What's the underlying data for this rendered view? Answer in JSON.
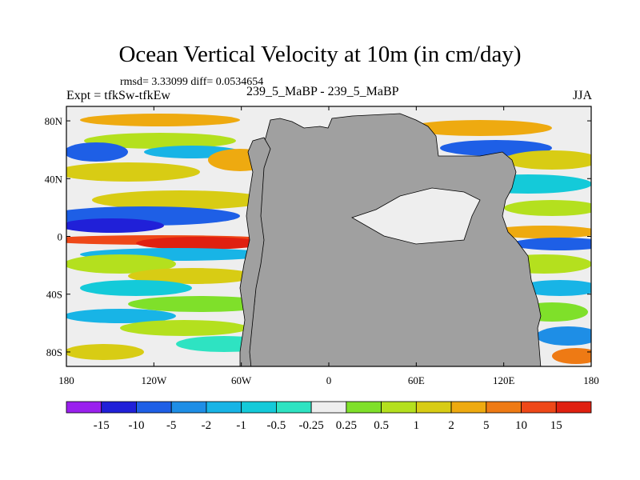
{
  "chart_data": {
    "type": "heatmap",
    "title": "Ocean Vertical Velocity at 10m (in cm/day)",
    "subtitle": "rmsd= 3.33099 diff= 0.0534654",
    "left_label": "Expt = tfkSw-tfkEw",
    "center_label": "239_5_MaBP - 239_5_MaBP",
    "right_label": "JJA",
    "x_ticks": [
      "180",
      "120W",
      "60W",
      "0",
      "60E",
      "120E",
      "180"
    ],
    "x_tick_values": [
      -180,
      -120,
      -60,
      0,
      60,
      120,
      180
    ],
    "y_ticks": [
      "80N",
      "40N",
      "0",
      "40S",
      "80S"
    ],
    "y_tick_values": [
      80,
      40,
      0,
      -40,
      -80
    ],
    "xlim": [
      -180,
      180
    ],
    "ylim": [
      -90,
      90
    ],
    "colorbar_labels": [
      "-15",
      "-10",
      "-5",
      "-2",
      "-1",
      "-0.5",
      "-0.25",
      "0.25",
      "0.5",
      "1",
      "2",
      "5",
      "10",
      "15"
    ],
    "colorbar_levels": [
      -15,
      -10,
      -5,
      -2,
      -1,
      -0.5,
      -0.25,
      0.25,
      0.5,
      1,
      2,
      5,
      10,
      15
    ],
    "colorbar_colors": [
      "#9a20ee",
      "#2020d8",
      "#1e5fe6",
      "#1e8ee6",
      "#18b4e6",
      "#14cad9",
      "#2ee3c2",
      "#eeeeee",
      "#7fe02a",
      "#b4e01e",
      "#d8cc14",
      "#eeaa10",
      "#ee7a14",
      "#ee4818",
      "#e02010"
    ],
    "land_color": "#a0a0a0"
  }
}
